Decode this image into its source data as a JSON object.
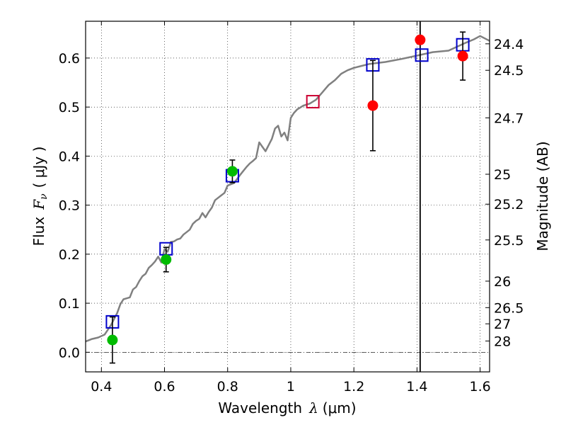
{
  "chart_data": {
    "type": "scatter",
    "title": "",
    "xlabel_prefix": "Wavelength",
    "xlabel_symbol": "λ",
    "xlabel_unit": "(μm)",
    "ylabel_text": "Flux",
    "ylabel_symbol": "F",
    "ylabel_subscript": "ν",
    "ylabel_unit": "( μJy )",
    "ylabel_right": "Magnitude (AB)",
    "xlim": [
      0.35,
      1.63
    ],
    "ylim": [
      -0.04,
      0.675
    ],
    "x_ticks": [
      0.4,
      0.6,
      0.8,
      1.0,
      1.2,
      1.4,
      1.6
    ],
    "x_tick_labels": [
      "0.4",
      "0.6",
      "0.8",
      "1",
      "1.2",
      "1.4",
      "1.6"
    ],
    "y_ticks": [
      0.0,
      0.1,
      0.2,
      0.3,
      0.4,
      0.5,
      0.6
    ],
    "y_tick_labels": [
      "0.0",
      "0.1",
      "0.2",
      "0.3",
      "0.4",
      "0.5",
      "0.6"
    ],
    "mag_ticks": [
      {
        "label": "24.4",
        "flux": 0.629
      },
      {
        "label": "24.5",
        "flux": 0.575
      },
      {
        "label": "24.7",
        "flux": 0.478
      },
      {
        "label": "25",
        "flux": 0.363
      },
      {
        "label": "25.2",
        "flux": 0.302
      },
      {
        "label": "25.5",
        "flux": 0.229
      },
      {
        "label": "26",
        "flux": 0.145
      },
      {
        "label": "26.5",
        "flux": 0.091
      },
      {
        "label": "27",
        "flux": 0.058
      },
      {
        "label": "28",
        "flux": 0.023
      }
    ],
    "grid": true,
    "vertical_line_x": 1.41,
    "horizontal_dashed_y": 0.0,
    "colors": {
      "sed": "#808080",
      "model": "#0000cc",
      "model_highlight": "#cc0033",
      "green": "#00bb00",
      "red": "#ff0000",
      "errorbar": "#000000"
    },
    "sed_spectrum": {
      "name": "model SED",
      "x": [
        0.35,
        0.37,
        0.39,
        0.41,
        0.43,
        0.45,
        0.46,
        0.47,
        0.48,
        0.49,
        0.5,
        0.51,
        0.52,
        0.53,
        0.54,
        0.55,
        0.56,
        0.57,
        0.58,
        0.59,
        0.6,
        0.61,
        0.62,
        0.63,
        0.64,
        0.65,
        0.66,
        0.67,
        0.68,
        0.69,
        0.7,
        0.71,
        0.72,
        0.73,
        0.74,
        0.75,
        0.76,
        0.77,
        0.78,
        0.79,
        0.8,
        0.82,
        0.84,
        0.85,
        0.86,
        0.87,
        0.88,
        0.89,
        0.9,
        0.92,
        0.94,
        0.95,
        0.96,
        0.97,
        0.98,
        0.99,
        1.0,
        1.01,
        1.02,
        1.04,
        1.06,
        1.08,
        1.1,
        1.12,
        1.14,
        1.16,
        1.18,
        1.2,
        1.25,
        1.3,
        1.35,
        1.4,
        1.45,
        1.5,
        1.55,
        1.58,
        1.6,
        1.63
      ],
      "y": [
        0.022,
        0.027,
        0.03,
        0.036,
        0.055,
        0.08,
        0.098,
        0.108,
        0.11,
        0.112,
        0.128,
        0.133,
        0.145,
        0.155,
        0.16,
        0.172,
        0.178,
        0.185,
        0.195,
        0.183,
        0.21,
        0.205,
        0.225,
        0.226,
        0.23,
        0.232,
        0.24,
        0.245,
        0.25,
        0.262,
        0.268,
        0.272,
        0.284,
        0.275,
        0.286,
        0.295,
        0.31,
        0.315,
        0.32,
        0.325,
        0.34,
        0.345,
        0.362,
        0.37,
        0.378,
        0.385,
        0.39,
        0.396,
        0.428,
        0.41,
        0.435,
        0.456,
        0.462,
        0.44,
        0.448,
        0.432,
        0.478,
        0.488,
        0.495,
        0.503,
        0.507,
        0.515,
        0.53,
        0.545,
        0.555,
        0.568,
        0.575,
        0.58,
        0.588,
        0.592,
        0.598,
        0.605,
        0.612,
        0.615,
        0.63,
        0.638,
        0.645,
        0.635
      ]
    },
    "series": [
      {
        "name": "model synthetic photometry",
        "marker": "open-square",
        "x": [
          0.435,
          0.605,
          0.815,
          1.07,
          1.26,
          1.415,
          1.545
        ],
        "y": [
          0.062,
          0.211,
          0.36,
          0.511,
          0.586,
          0.606,
          0.627
        ]
      },
      {
        "name": "green detections",
        "marker": "filled-circle",
        "x": [
          0.435,
          0.605,
          0.815
        ],
        "y": [
          0.025,
          0.189,
          0.369
        ],
        "yerr": [
          0.047,
          0.025,
          0.023
        ]
      },
      {
        "name": "red detections",
        "marker": "filled-circle",
        "x": [
          1.26,
          1.41,
          1.545
        ],
        "y": [
          0.503,
          0.637,
          0.604
        ],
        "yerr": [
          0.092,
          0.0,
          0.049
        ]
      }
    ]
  }
}
